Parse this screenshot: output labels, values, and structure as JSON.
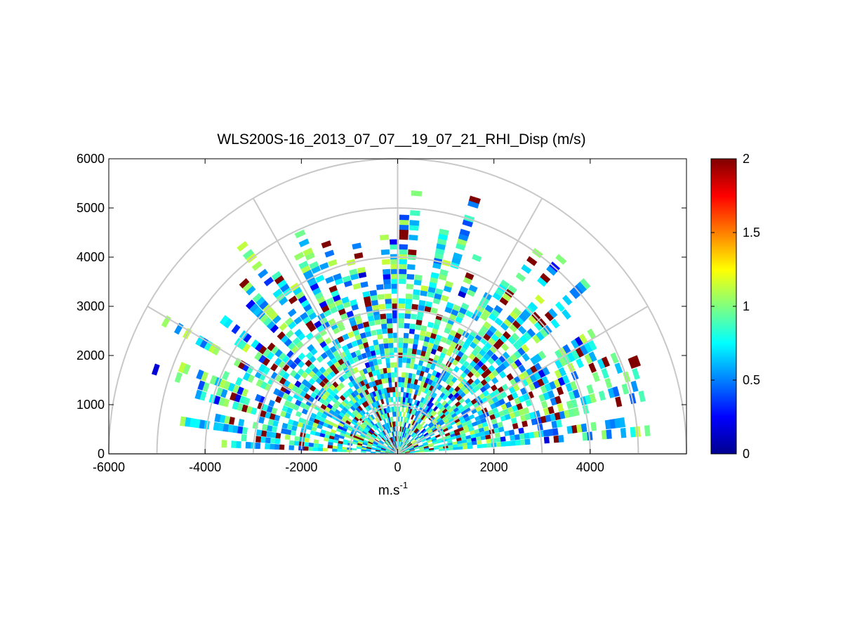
{
  "chart_data": {
    "type": "heatmap",
    "subtype": "polar-rhi-sector",
    "title": "WLS200S-16_2013_07_07__19_07_21_RHI_Disp (m/s)",
    "xlabel": "m.s",
    "xlabel_superscript": "-1",
    "ylabel": "",
    "xlim": [
      -6000,
      6000
    ],
    "ylim": [
      0,
      6000
    ],
    "x_ticks": [
      -6000,
      -4000,
      -2000,
      0,
      2000,
      4000
    ],
    "x_tick_labels": [
      "-6000",
      "-4000",
      "-2000",
      "0",
      "2000",
      "4000"
    ],
    "y_ticks": [
      0,
      1000,
      2000,
      3000,
      4000,
      5000,
      6000
    ],
    "y_tick_labels": [
      "0",
      "1000",
      "2000",
      "3000",
      "4000",
      "5000",
      "6000"
    ],
    "polar_grid": {
      "range_rings_m": [
        1000,
        2000,
        3000,
        4000,
        5000,
        6000
      ],
      "spokes_deg": [
        0,
        30,
        60,
        90,
        120,
        150,
        180
      ]
    },
    "colorbar": {
      "min": 0,
      "max": 2,
      "ticks": [
        0,
        0.5,
        1,
        1.5,
        2
      ],
      "tick_labels": [
        "0",
        "0.5",
        "1",
        "1.5",
        "2"
      ],
      "colormap": "jet"
    },
    "scan": {
      "max_range_m": 5500,
      "field": "dispersion (m/s)",
      "typical_value": 0.8
    },
    "grid": true,
    "legend": "none"
  },
  "colors": {
    "grid_line": "#c8c8c8",
    "axes_box": "#000000",
    "background": "#ffffff"
  }
}
